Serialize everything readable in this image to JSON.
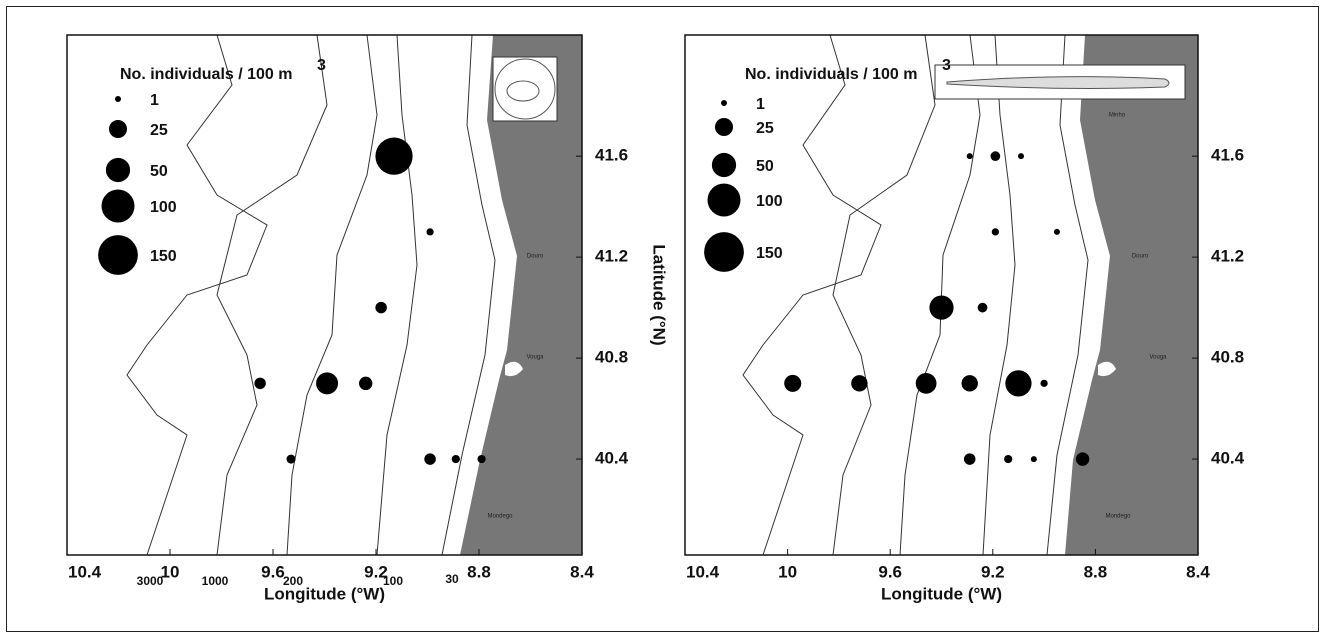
{
  "chart_data": [
    {
      "type": "bubble",
      "xlabel": "Longitude (°W)",
      "ylabel": "Latitude (°N)",
      "legend_title": "No. individuals / 100 m",
      "legend_title_sup": "3",
      "size_legend": [
        1,
        25,
        50,
        100,
        150
      ],
      "xlim": [
        10.4,
        8.4
      ],
      "xticks": [
        10.4,
        10,
        9.6,
        9.2,
        8.8,
        8.4
      ],
      "ylim": [
        40.02,
        42.08
      ],
      "yticks": [
        40.4,
        40.8,
        41.2,
        41.6
      ],
      "color": "#000000",
      "series": [
        {
          "x": [
            9.13,
            8.99,
            9.18,
            9.65,
            9.39,
            9.24,
            9.53,
            8.99,
            8.89,
            8.79
          ],
          "y": [
            41.6,
            41.3,
            41.0,
            40.7,
            40.7,
            40.7,
            40.4,
            40.4,
            40.4,
            40.4
          ],
          "sizes": [
            130,
            2,
            8,
            8,
            40,
            12,
            4,
            8,
            3,
            3
          ]
        }
      ],
      "contour_labels": [
        "3000",
        "1000",
        "200",
        "100",
        "30"
      ],
      "places": [
        "Douro",
        "Vouga",
        "Mondego"
      ]
    },
    {
      "type": "bubble",
      "xlabel": "Longitude (°W)",
      "legend_title": "No. individuals / 100 m",
      "legend_title_sup": "3",
      "size_legend": [
        1,
        25,
        50,
        100,
        150
      ],
      "xlim": [
        10.4,
        8.4
      ],
      "xticks": [
        10.4,
        10,
        9.6,
        9.2,
        8.8,
        8.4
      ],
      "ylim": [
        40.02,
        42.08
      ],
      "yticks": [
        40.4,
        40.8,
        41.2,
        41.6
      ],
      "color": "#000000",
      "series": [
        {
          "x": [
            9.29,
            9.19,
            9.09,
            9.19,
            8.95,
            9.4,
            9.24,
            9.98,
            9.72,
            9.46,
            9.29,
            9.1,
            9.0,
            9.29,
            9.14,
            9.04,
            8.85
          ],
          "y": [
            41.6,
            41.6,
            41.6,
            41.3,
            41.3,
            41.0,
            41.0,
            40.7,
            40.7,
            40.7,
            40.7,
            40.7,
            40.7,
            40.4,
            40.4,
            40.4,
            40.4
          ],
          "sizes": [
            1,
            5,
            1,
            2,
            1,
            50,
            5,
            22,
            20,
            35,
            20,
            60,
            2,
            8,
            3,
            1,
            12
          ]
        }
      ],
      "places": [
        "Minho",
        "Douro",
        "Vouga",
        "Mondego"
      ]
    }
  ]
}
